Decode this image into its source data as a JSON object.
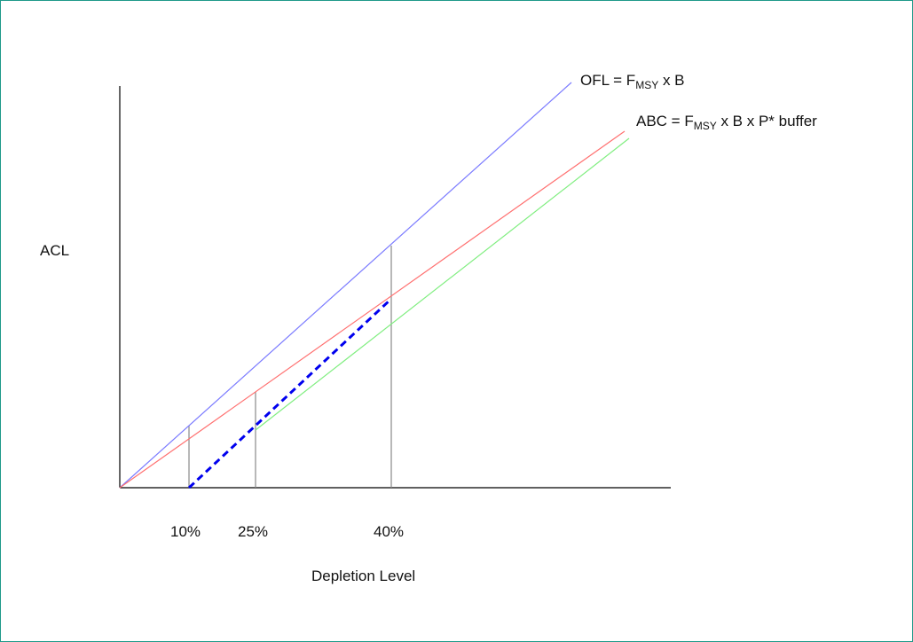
{
  "chart_data": {
    "type": "line",
    "ylabel": "ACL",
    "xlabel": "Depletion Level",
    "x_ticks": [
      "10%",
      "25%",
      "40%"
    ],
    "series": [
      {
        "name": "OFL",
        "label_parts": [
          "OFL = F",
          "MSY",
          " x B"
        ],
        "color": "#7b7bff"
      },
      {
        "name": "ABC",
        "label_parts": [
          "ABC = F",
          "MSY",
          " x B x P* buffer"
        ],
        "color": "#ff7070"
      },
      {
        "name": "",
        "color": "#80ee80"
      },
      {
        "name": "",
        "color": "#0000ee",
        "style": "dashed"
      }
    ],
    "reference_lines_at": [
      "10%",
      "25%",
      "40%"
    ]
  }
}
